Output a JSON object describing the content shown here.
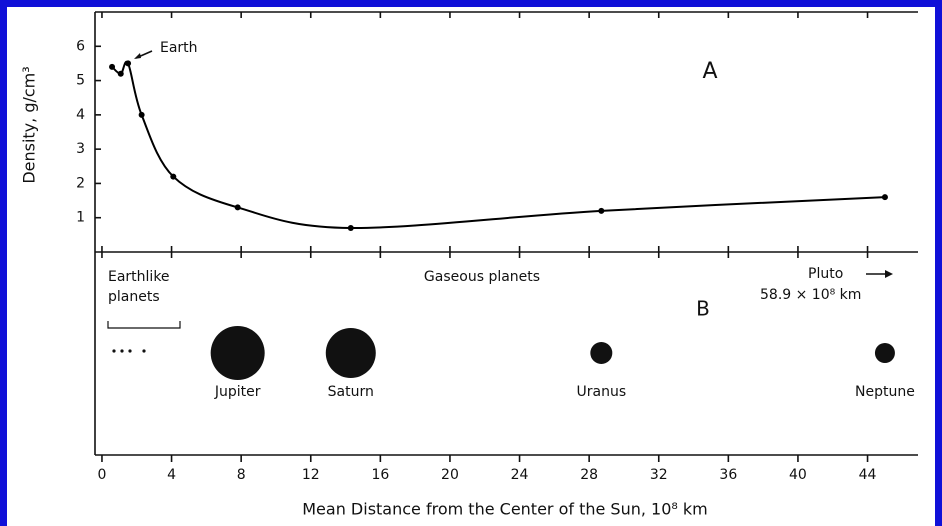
{
  "chart_data": {
    "type": "line",
    "y_label": "Density, g/cm³",
    "x_label": "Mean Distance from the Center of the Sun, 10⁸ km",
    "x": [
      0.58,
      1.08,
      1.5,
      2.28,
      4.1,
      7.8,
      14.3,
      28.7,
      45.0
    ],
    "values": [
      5.4,
      5.2,
      5.5,
      4.0,
      2.2,
      1.3,
      0.7,
      1.2,
      1.6
    ],
    "color": "#000000",
    "xlim": [
      -0.4,
      46.9
    ],
    "xticks": [
      0,
      4,
      8,
      12,
      16,
      20,
      24,
      28,
      32,
      36,
      40,
      44
    ],
    "ylim": [
      0,
      7
    ],
    "yticks": [
      1,
      2,
      3,
      4,
      5,
      6
    ],
    "annotations": {
      "earth": "Earth",
      "panel_a": "A",
      "panel_b": "B",
      "earthlike_1": "Earthlike",
      "earthlike_2": "planets",
      "gaseous": "Gaseous planets",
      "pluto": "Pluto",
      "pluto_distance": "58.9 × 10⁸ km"
    },
    "planets": [
      {
        "name": "Jupiter",
        "x": 7.8
      },
      {
        "name": "Saturn",
        "x": 14.3
      },
      {
        "name": "Uranus",
        "x": 28.7
      },
      {
        "name": "Neptune",
        "x": 45.0
      }
    ]
  }
}
